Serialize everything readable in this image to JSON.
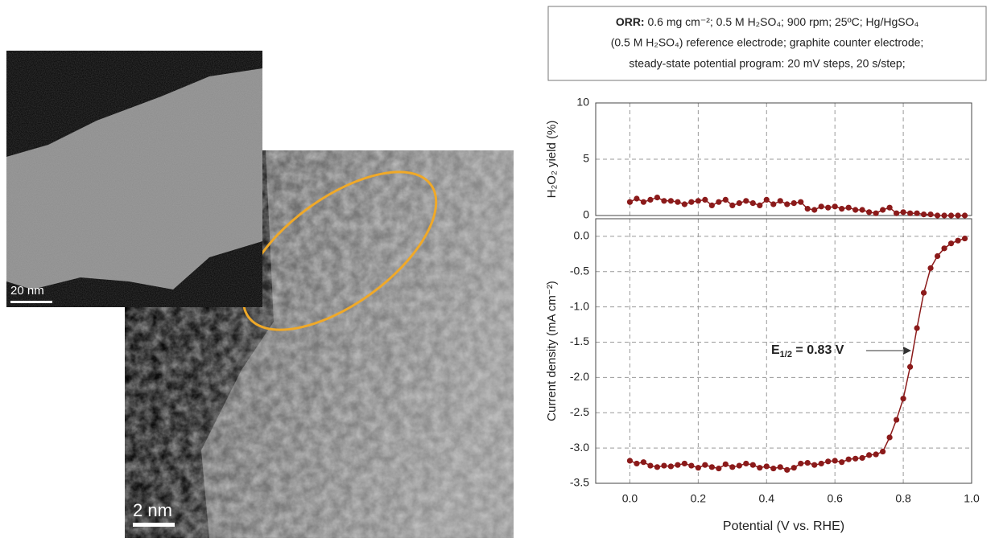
{
  "images": [
    {
      "scale_bar": "20 nm"
    },
    {
      "scale_bar": "2 nm"
    }
  ],
  "note": {
    "bold": "ORR:",
    "lines": [
      "0.6 mg cm⁻²; 0.5 M H₂SO₄; 900 rpm; 25ºC; Hg/HgSO₄",
      "(0.5 M H₂SO₄) reference electrode; graphite counter electrode;",
      "steady-state potential program: 20 mV steps, 20 s/step;"
    ]
  },
  "chart_data": [
    {
      "type": "line",
      "y_label": "H₂O₂ yield (%)",
      "color": "#8b1a1a",
      "grid": true,
      "x": [
        0,
        0.02,
        0.04,
        0.06,
        0.08,
        0.1,
        0.12,
        0.14,
        0.16,
        0.18,
        0.2,
        0.22,
        0.24,
        0.26,
        0.28,
        0.3,
        0.32,
        0.34,
        0.36,
        0.38,
        0.4,
        0.42,
        0.44,
        0.46,
        0.48,
        0.5,
        0.52,
        0.54,
        0.56,
        0.58,
        0.6,
        0.62,
        0.64,
        0.66,
        0.68,
        0.7,
        0.72,
        0.74,
        0.76,
        0.78,
        0.8,
        0.82,
        0.84,
        0.86,
        0.88,
        0.9,
        0.92,
        0.94,
        0.96,
        0.98
      ],
      "values": [
        1.2,
        1.5,
        1.2,
        1.4,
        1.6,
        1.3,
        1.3,
        1.2,
        1.0,
        1.2,
        1.3,
        1.4,
        0.9,
        1.2,
        1.4,
        0.9,
        1.1,
        1.3,
        1.1,
        0.9,
        1.4,
        1.0,
        1.3,
        1.0,
        1.1,
        1.2,
        0.6,
        0.5,
        0.8,
        0.7,
        0.8,
        0.6,
        0.7,
        0.5,
        0.5,
        0.3,
        0.2,
        0.5,
        0.7,
        0.2,
        0.3,
        0.2,
        0.2,
        0.1,
        0.1,
        0.0,
        0.0,
        0.0,
        0.0,
        0.0
      ],
      "xlim": [
        -0.1,
        1.0
      ],
      "ylim": [
        0,
        10
      ],
      "yticks": [
        0,
        5,
        10
      ]
    },
    {
      "type": "line",
      "y_label": "Current density (mA cm⁻²)",
      "x_label": "Potential (V vs. RHE)",
      "color": "#8b1a1a",
      "grid": true,
      "annotation": {
        "main": "E",
        "sub": "1/2",
        "tail": " = 0.83 V"
      },
      "x": [
        0,
        0.02,
        0.04,
        0.06,
        0.08,
        0.1,
        0.12,
        0.14,
        0.16,
        0.18,
        0.2,
        0.22,
        0.24,
        0.26,
        0.28,
        0.3,
        0.32,
        0.34,
        0.36,
        0.38,
        0.4,
        0.42,
        0.44,
        0.46,
        0.48,
        0.5,
        0.52,
        0.54,
        0.56,
        0.58,
        0.6,
        0.62,
        0.64,
        0.66,
        0.68,
        0.7,
        0.72,
        0.74,
        0.76,
        0.78,
        0.8,
        0.82,
        0.84,
        0.86,
        0.88,
        0.9,
        0.92,
        0.94,
        0.96,
        0.98
      ],
      "values": [
        -3.18,
        -3.22,
        -3.2,
        -3.25,
        -3.27,
        -3.25,
        -3.26,
        -3.24,
        -3.22,
        -3.25,
        -3.28,
        -3.24,
        -3.27,
        -3.29,
        -3.23,
        -3.27,
        -3.25,
        -3.22,
        -3.24,
        -3.28,
        -3.26,
        -3.29,
        -3.27,
        -3.31,
        -3.28,
        -3.22,
        -3.21,
        -3.24,
        -3.22,
        -3.19,
        -3.18,
        -3.2,
        -3.16,
        -3.15,
        -3.14,
        -3.1,
        -3.09,
        -3.05,
        -2.85,
        -2.6,
        -2.3,
        -1.85,
        -1.3,
        -0.8,
        -0.45,
        -0.28,
        -0.17,
        -0.1,
        -0.06,
        -0.03
      ],
      "xlim": [
        -0.1,
        1.0
      ],
      "ylim": [
        -3.5,
        0.25
      ],
      "xticks": [
        {
          "value": 0,
          "label": "0.0"
        },
        0.2,
        0.4,
        0.6,
        0.8,
        {
          "value": 1,
          "label": "1.0"
        }
      ],
      "yticks": [
        {
          "value": 0,
          "label": "0.0"
        },
        -0.5,
        {
          "value": -1,
          "label": "-1.0"
        },
        -1.5,
        {
          "value": -2,
          "label": "-2.0"
        },
        -2.5,
        {
          "value": -3,
          "label": "-3.0"
        },
        -3.5
      ]
    }
  ]
}
